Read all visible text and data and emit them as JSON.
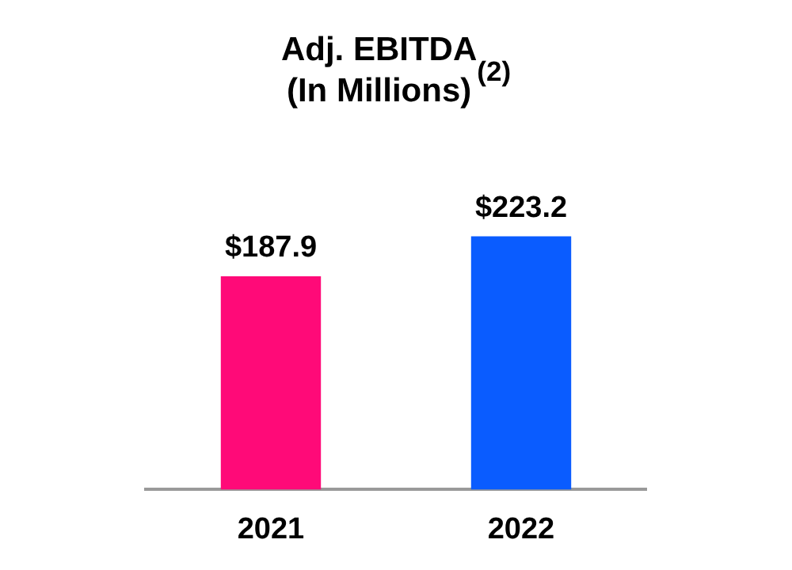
{
  "chart_data": {
    "type": "bar",
    "title": "Adj. EBITDA\n(In Millions)$^{(2)}$",
    "categories": [
      "2021",
      "2022"
    ],
    "values": [
      187.9,
      223.2
    ],
    "colors": [
      "#ff0a78",
      "#0a5cff"
    ],
    "value_labels": [
      "$187.9",
      "$223.2"
    ],
    "grid": false,
    "legend": false
  }
}
